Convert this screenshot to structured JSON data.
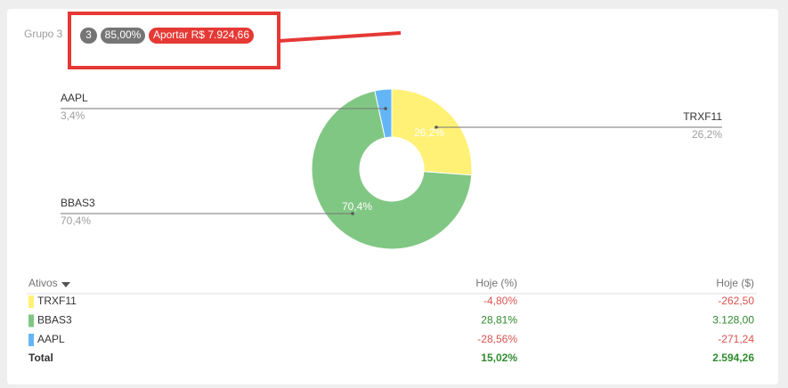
{
  "header": {
    "title": "Grupo 3",
    "count": "3",
    "percent": "85,00%",
    "action": "Aportar R$ 7.924,66"
  },
  "chart_data": {
    "type": "donut",
    "categories": [
      "TRXF11",
      "BBAS3",
      "AAPL"
    ],
    "values": [
      26.2,
      70.4,
      3.4
    ],
    "value_labels": [
      "26,2%",
      "70,4%",
      "3,4%"
    ],
    "colors": [
      "#fff176",
      "#81c784",
      "#64b5f6"
    ]
  },
  "table": {
    "columns": [
      "Ativos",
      "Hoje (%)",
      "Hoje ($)"
    ],
    "rows": [
      [
        "TRXF11",
        "-4,80%",
        "-262,50"
      ],
      [
        "BBAS3",
        "28,81%",
        "3.128,00"
      ],
      [
        "AAPL",
        "-28,56%",
        "-271,24"
      ]
    ],
    "total": [
      "Total",
      "15,02%",
      "2.594,26"
    ]
  }
}
